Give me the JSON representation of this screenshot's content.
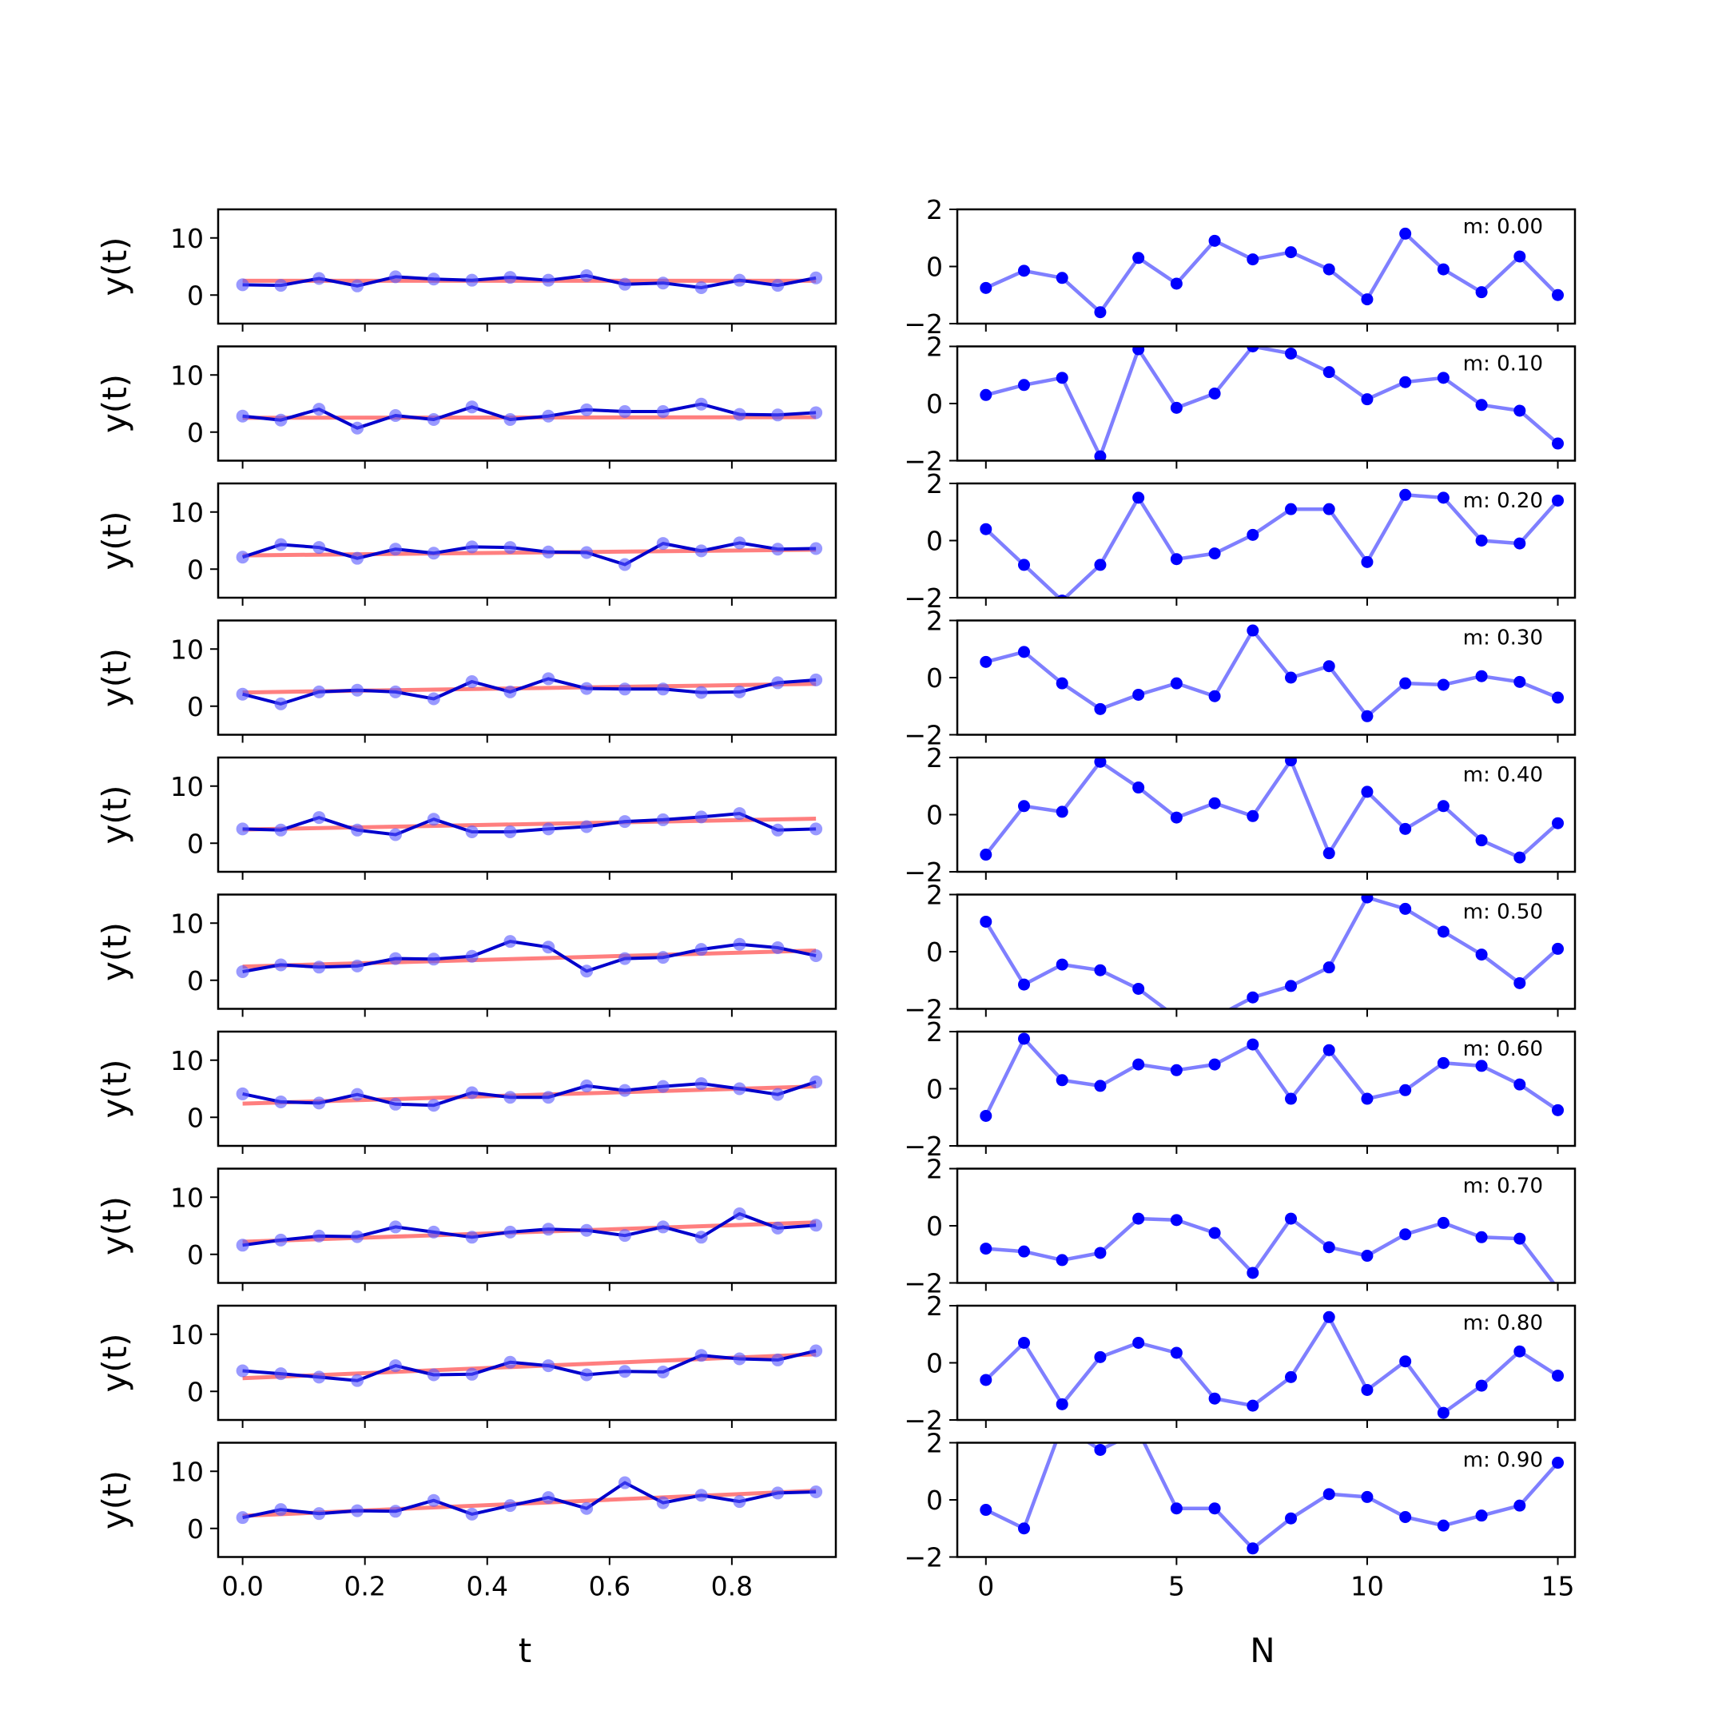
{
  "chart_data": {
    "type": "line",
    "left_panels": {
      "x": [
        0.0,
        0.0625,
        0.125,
        0.1875,
        0.25,
        0.3125,
        0.375,
        0.4375,
        0.5,
        0.5625,
        0.625,
        0.6875,
        0.75,
        0.8125,
        0.875,
        0.9375
      ],
      "xlim": [
        -0.04,
        0.97
      ],
      "ylim": [
        -5,
        15
      ],
      "xticks": [
        0.0,
        0.2,
        0.4,
        0.6,
        0.8
      ],
      "xtick_labels": [
        "0.0",
        "0.2",
        "0.4",
        "0.6",
        "0.8"
      ],
      "yticks": [
        0,
        10
      ],
      "ytick_labels": [
        "0",
        "10"
      ],
      "xlabel": "t",
      "ylabel": "y(t)",
      "colors": {
        "data": "#0000cc",
        "markers": "#5555ff",
        "fit": "#ff0000"
      }
    },
    "right_panels": {
      "x": [
        0,
        1,
        2,
        3,
        4,
        5,
        6,
        7,
        8,
        9,
        10,
        11,
        12,
        13,
        14,
        15
      ],
      "xlim": [
        -0.75,
        15.45
      ],
      "ylim": [
        -2,
        2
      ],
      "xticks": [
        0,
        5,
        10,
        15
      ],
      "xtick_labels": [
        "0",
        "5",
        "10",
        "15"
      ],
      "yticks": [
        -2,
        0,
        2
      ],
      "ytick_labels": [
        "−2",
        "0",
        "2"
      ],
      "xlabel": "N",
      "colors": {
        "line": "#0000ff"
      }
    },
    "rows": [
      {
        "m_label": "m: 0.00",
        "fit": [
          2.5,
          2.5
        ],
        "y": [
          1.8,
          1.7,
          2.9,
          1.6,
          3.2,
          2.8,
          2.6,
          3.1,
          2.6,
          3.4,
          1.9,
          2.1,
          1.3,
          2.6,
          1.7,
          3.0
        ],
        "residuals": [
          -0.75,
          -0.15,
          -0.4,
          -1.6,
          0.3,
          -0.6,
          0.9,
          0.25,
          0.5,
          -0.1,
          -1.15,
          1.15,
          -0.1,
          -0.9,
          0.35,
          -1.0
        ]
      },
      {
        "m_label": "m: 0.10",
        "fit": [
          2.5,
          2.6
        ],
        "y": [
          2.8,
          2.1,
          4.0,
          0.7,
          2.9,
          2.2,
          4.4,
          2.2,
          2.8,
          3.9,
          3.6,
          3.6,
          4.9,
          3.1,
          3.0,
          3.4
        ],
        "residuals": [
          0.3,
          0.65,
          0.9,
          -1.85,
          1.9,
          -0.15,
          0.35,
          2.0,
          1.75,
          1.1,
          0.15,
          0.75,
          0.9,
          -0.05,
          -0.25,
          -1.4
        ]
      },
      {
        "m_label": "m: 0.20",
        "fit": [
          2.4,
          3.4
        ],
        "y": [
          2.1,
          4.3,
          3.8,
          1.9,
          3.5,
          2.8,
          3.9,
          3.8,
          3.0,
          2.9,
          0.8,
          4.5,
          3.2,
          4.6,
          3.5,
          3.6
        ],
        "residuals": [
          0.4,
          -0.85,
          -2.1,
          -0.85,
          1.5,
          -0.65,
          -0.45,
          0.2,
          1.1,
          1.1,
          -0.75,
          1.6,
          1.5,
          0.0,
          -0.1,
          1.4
        ]
      },
      {
        "m_label": "m: 0.30",
        "fit": [
          2.4,
          3.9
        ],
        "y": [
          2.1,
          0.4,
          2.5,
          2.8,
          2.5,
          1.3,
          4.3,
          2.5,
          4.8,
          3.1,
          3.0,
          3.0,
          2.4,
          2.5,
          4.1,
          4.6
        ],
        "residuals": [
          0.55,
          0.9,
          -0.2,
          -1.1,
          -0.6,
          -0.2,
          -0.65,
          1.65,
          0.0,
          0.4,
          -1.35,
          -0.2,
          -0.25,
          0.05,
          -0.15,
          -0.7
        ]
      },
      {
        "m_label": "m: 0.40",
        "fit": [
          2.4,
          4.3
        ],
        "y": [
          2.5,
          2.3,
          4.5,
          2.3,
          1.5,
          4.2,
          2.0,
          2.0,
          2.5,
          2.9,
          3.8,
          4.1,
          4.6,
          5.2,
          2.3,
          2.5
        ],
        "residuals": [
          -1.4,
          0.3,
          0.1,
          1.85,
          0.95,
          -0.1,
          0.4,
          -0.05,
          1.9,
          -1.35,
          0.8,
          -0.5,
          0.3,
          -0.9,
          -1.5,
          -0.3
        ]
      },
      {
        "m_label": "m: 0.50",
        "fit": [
          2.4,
          5.2
        ],
        "y": [
          1.5,
          2.7,
          2.3,
          2.5,
          3.8,
          3.7,
          4.2,
          6.8,
          5.8,
          1.6,
          3.8,
          4.0,
          5.4,
          6.3,
          5.7,
          4.3
        ],
        "residuals": [
          1.05,
          -1.15,
          -0.45,
          -0.65,
          -1.3,
          -2.3,
          -2.3,
          -1.6,
          -1.2,
          -0.55,
          1.9,
          1.5,
          0.7,
          -0.1,
          -1.1,
          0.1
        ]
      },
      {
        "m_label": "m: 0.60",
        "fit": [
          2.4,
          5.4
        ],
        "y": [
          4.1,
          2.7,
          2.5,
          4.0,
          2.3,
          2.1,
          4.3,
          3.5,
          3.5,
          5.5,
          4.7,
          5.4,
          5.9,
          5.0,
          4.0,
          6.2
        ],
        "residuals": [
          -0.95,
          1.75,
          0.3,
          0.1,
          0.85,
          0.65,
          0.85,
          1.55,
          -0.35,
          1.35,
          -0.35,
          -0.05,
          0.9,
          0.8,
          0.15,
          -0.75
        ]
      },
      {
        "m_label": "m: 0.70",
        "fit": [
          2.2,
          5.6
        ],
        "y": [
          1.6,
          2.5,
          3.2,
          3.1,
          4.8,
          3.9,
          3.0,
          3.9,
          4.4,
          4.2,
          3.3,
          4.8,
          3.0,
          7.1,
          4.6,
          5.1
        ],
        "residuals": [
          -0.8,
          -0.9,
          -1.2,
          -0.95,
          0.25,
          0.2,
          -0.25,
          -1.65,
          0.25,
          -0.75,
          -1.05,
          -0.3,
          0.1,
          -0.4,
          -0.45,
          -2.2
        ]
      },
      {
        "m_label": "m: 0.80",
        "fit": [
          2.3,
          6.5
        ],
        "y": [
          3.6,
          3.1,
          2.5,
          1.9,
          4.5,
          2.9,
          3.0,
          5.1,
          4.5,
          2.9,
          3.5,
          3.4,
          6.3,
          5.7,
          5.5,
          7.1
        ],
        "residuals": [
          -0.6,
          0.7,
          -1.45,
          0.2,
          0.7,
          0.35,
          -1.25,
          -1.5,
          -0.5,
          1.6,
          -0.95,
          0.05,
          -1.75,
          -0.8,
          0.4,
          -0.45
        ]
      },
      {
        "m_label": "m: 0.90",
        "fit": [
          2.2,
          6.6
        ],
        "y": [
          1.9,
          3.3,
          2.6,
          3.1,
          3.0,
          4.9,
          2.5,
          4.0,
          5.4,
          3.5,
          8.0,
          4.5,
          5.8,
          4.7,
          6.2,
          6.4
        ],
        "residuals": [
          -0.35,
          -1.0,
          2.6,
          1.75,
          2.4,
          -0.3,
          -0.3,
          -1.7,
          -0.65,
          0.2,
          0.1,
          -0.6,
          -0.9,
          -0.55,
          -0.2,
          1.3
        ]
      }
    ]
  }
}
